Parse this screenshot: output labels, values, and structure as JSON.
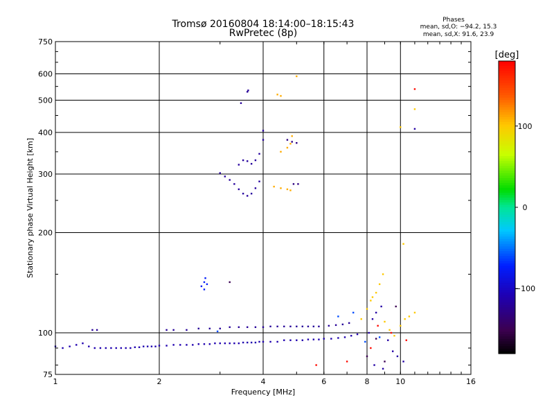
{
  "header": {
    "title_line1": "Tromsø 20160804 18:14:00–18:15:43",
    "title_line2": "RwPretec (8p)"
  },
  "phases_box": {
    "heading": "Phases",
    "line_o": "mean, sd,O: −94.2, 15.3",
    "line_x": "mean, sd,X:  91.6, 23.9"
  },
  "chart_data": {
    "type": "scatter",
    "xlabel": "Frequency [MHz]",
    "ylabel": "Stationary phase Virtual Height [km]",
    "x_scale": "log",
    "y_scale": "log",
    "xlim": [
      1,
      16
    ],
    "ylim": [
      75,
      750
    ],
    "x_ticks": [
      1,
      2,
      4,
      6,
      8,
      10,
      16
    ],
    "y_ticks": [
      75,
      100,
      200,
      300,
      400,
      500,
      600,
      750
    ],
    "x_tick_labels": [
      "1",
      "2",
      "4",
      "6",
      "8",
      "10",
      "16"
    ],
    "y_tick_labels": [
      "75",
      "100",
      "200",
      "300",
      "400",
      "500",
      "600",
      "750"
    ],
    "grid": true,
    "colorbar": {
      "label": "[deg]",
      "range": [
        -180,
        180
      ],
      "ticks": [
        100,
        0,
        -100
      ],
      "tick_labels": [
        "100",
        "0",
        "−100"
      ]
    },
    "series": [
      {
        "points": [
          [
            1.0,
            91
          ],
          [
            1.05,
            90
          ],
          [
            1.1,
            91
          ],
          [
            1.15,
            92
          ],
          [
            1.2,
            93
          ],
          [
            1.25,
            91
          ],
          [
            1.3,
            90
          ],
          [
            1.35,
            90
          ],
          [
            1.4,
            90
          ],
          [
            1.45,
            90
          ],
          [
            1.5,
            90
          ],
          [
            1.55,
            90
          ],
          [
            1.6,
            90
          ],
          [
            1.65,
            90
          ],
          [
            1.7,
            90.5
          ],
          [
            1.75,
            90.5
          ],
          [
            1.8,
            91
          ],
          [
            1.85,
            91
          ],
          [
            1.9,
            91
          ],
          [
            1.95,
            91
          ],
          [
            2.0,
            91.5
          ],
          [
            2.1,
            91.5
          ],
          [
            2.2,
            92
          ],
          [
            2.3,
            92
          ],
          [
            2.4,
            92
          ],
          [
            2.5,
            92
          ],
          [
            2.6,
            92.5
          ],
          [
            2.7,
            92.5
          ],
          [
            2.8,
            92.5
          ],
          [
            2.9,
            93
          ],
          [
            3.0,
            93
          ],
          [
            3.1,
            93
          ],
          [
            3.2,
            93
          ],
          [
            3.3,
            93
          ],
          [
            3.4,
            93
          ],
          [
            3.5,
            93.5
          ],
          [
            3.6,
            93.5
          ],
          [
            3.7,
            93.5
          ],
          [
            3.8,
            93.5
          ],
          [
            3.9,
            94
          ],
          [
            4.0,
            94
          ],
          [
            4.2,
            94
          ],
          [
            4.4,
            94
          ],
          [
            4.6,
            95
          ],
          [
            4.8,
            95
          ],
          [
            5.0,
            95
          ],
          [
            5.2,
            95
          ],
          [
            5.4,
            95.5
          ],
          [
            5.6,
            95.5
          ],
          [
            5.8,
            95.5
          ],
          [
            6.0,
            96
          ],
          [
            6.3,
            96
          ],
          [
            6.6,
            96.5
          ],
          [
            6.9,
            97
          ],
          [
            7.2,
            98
          ],
          [
            7.5,
            99
          ]
        ],
        "phase": -110
      },
      {
        "points": [
          [
            1.28,
            102
          ],
          [
            1.32,
            102
          ],
          [
            2.1,
            102
          ],
          [
            2.2,
            102
          ],
          [
            2.4,
            102
          ],
          [
            2.6,
            103
          ],
          [
            2.8,
            103
          ],
          [
            3.0,
            103
          ],
          [
            3.2,
            104
          ],
          [
            3.4,
            104
          ],
          [
            3.6,
            104
          ],
          [
            3.8,
            104
          ],
          [
            4.0,
            104
          ],
          [
            4.2,
            104.5
          ],
          [
            4.4,
            104.5
          ],
          [
            4.6,
            104.5
          ],
          [
            4.8,
            104.5
          ],
          [
            5.0,
            104.5
          ],
          [
            5.2,
            104.5
          ],
          [
            5.4,
            104.5
          ],
          [
            5.6,
            104.5
          ],
          [
            5.8,
            104.5
          ],
          [
            6.2,
            105
          ],
          [
            6.5,
            105.5
          ],
          [
            6.8,
            106
          ],
          [
            7.1,
            107
          ]
        ],
        "phase": -120
      },
      {
        "points": [
          [
            2.65,
            138
          ],
          [
            2.7,
            142
          ],
          [
            2.72,
            146
          ],
          [
            2.75,
            140
          ],
          [
            2.7,
            135
          ]
        ],
        "phase": -75
      },
      {
        "points": [
          [
            3.0,
            302
          ],
          [
            3.1,
            295
          ],
          [
            3.2,
            288
          ],
          [
            3.3,
            280
          ],
          [
            3.4,
            270
          ],
          [
            3.5,
            262
          ],
          [
            3.6,
            258
          ],
          [
            3.7,
            262
          ],
          [
            3.8,
            272
          ],
          [
            3.9,
            285
          ],
          [
            3.4,
            320
          ],
          [
            3.5,
            330
          ],
          [
            3.6,
            328
          ],
          [
            3.7,
            322
          ],
          [
            3.8,
            330
          ],
          [
            3.9,
            345
          ],
          [
            4.0,
            380
          ],
          [
            4.0,
            405
          ]
        ],
        "phase": -118
      },
      {
        "points": [
          [
            3.45,
            490
          ],
          [
            3.6,
            530
          ],
          [
            3.62,
            535
          ]
        ],
        "phase": -120
      },
      {
        "points": [
          [
            4.3,
            275
          ],
          [
            4.5,
            272
          ],
          [
            4.7,
            270
          ],
          [
            4.8,
            268
          ],
          [
            4.5,
            350
          ],
          [
            4.7,
            360
          ],
          [
            4.8,
            370
          ],
          [
            4.85,
            390
          ],
          [
            4.4,
            520
          ],
          [
            4.5,
            515
          ],
          [
            5.0,
            590
          ]
        ],
        "phase": 110
      },
      {
        "points": [
          [
            4.7,
            380
          ],
          [
            4.85,
            375
          ],
          [
            5.0,
            372
          ],
          [
            4.9,
            280
          ],
          [
            5.05,
            280
          ]
        ],
        "phase": -130
      },
      {
        "points": [
          [
            7.7,
            110
          ],
          [
            8.0,
            118
          ],
          [
            8.2,
            125
          ],
          [
            8.3,
            128
          ],
          [
            8.5,
            132
          ],
          [
            8.7,
            140
          ],
          [
            8.9,
            150
          ],
          [
            9.0,
            108
          ],
          [
            9.3,
            102
          ],
          [
            9.6,
            98
          ],
          [
            10.0,
            105
          ],
          [
            10.3,
            110
          ],
          [
            10.6,
            112
          ],
          [
            11.0,
            115
          ],
          [
            10.0,
            415
          ],
          [
            11.0,
            470
          ],
          [
            10.2,
            185
          ]
        ],
        "phase": 100
      },
      {
        "points": [
          [
            8.1,
            100
          ],
          [
            8.3,
            110
          ],
          [
            8.5,
            115
          ],
          [
            8.8,
            120
          ],
          [
            9.2,
            95
          ],
          [
            9.5,
            88
          ],
          [
            9.8,
            85
          ],
          [
            10.2,
            82
          ],
          [
            8.4,
            80
          ],
          [
            8.9,
            78
          ],
          [
            11.0,
            410
          ]
        ],
        "phase": -115
      },
      {
        "points": [
          [
            8.2,
            90
          ],
          [
            8.6,
            105
          ],
          [
            9.4,
            100
          ],
          [
            10.4,
            95
          ],
          [
            11.0,
            540
          ],
          [
            5.7,
            80
          ],
          [
            7.0,
            82
          ]
        ],
        "phase": 175
      },
      {
        "points": [
          [
            7.9,
            94
          ],
          [
            8.7,
            97
          ],
          [
            6.6,
            112
          ],
          [
            7.3,
            115
          ],
          [
            2.95,
            101
          ]
        ],
        "phase": -60
      },
      {
        "points": [
          [
            8.0,
            85
          ],
          [
            9.0,
            82
          ],
          [
            9.7,
            120
          ],
          [
            3.2,
            142
          ],
          [
            8.5,
            96
          ]
        ],
        "phase": -150
      }
    ]
  }
}
